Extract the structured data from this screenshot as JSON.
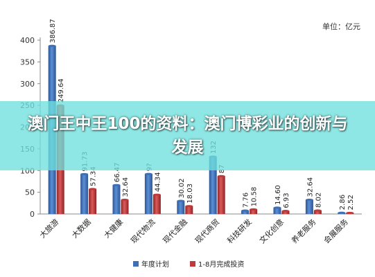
{
  "banner": {
    "title": "澳门王中王100的资料：澳门博彩业的创新与发展"
  },
  "chart_data": {
    "type": "bar",
    "unit_label": "单位：亿元",
    "categories": [
      "大旅游",
      "大数据",
      "大健康",
      "现代物流",
      "现代金融",
      "现代商贸",
      "科技研发",
      "文化创意",
      "养老服务",
      "会展服务"
    ],
    "series": [
      {
        "name": "年度计划",
        "color": "#3f6fb4",
        "values": [
          386.87,
          91.73,
          66.47,
          92.0,
          30.02,
          132.0,
          7.76,
          14.6,
          32.64,
          2.86
        ],
        "labels": [
          "386.87",
          "91.73",
          "66.47",
          "9?",
          "30.02",
          "132",
          "7.76",
          "14.60",
          "32.64",
          "2.86"
        ]
      },
      {
        "name": "1-8月完成投资",
        "color": "#c0393b",
        "values": [
          249.64,
          57.34,
          32.64,
          44.34,
          18.03,
          87.0,
          10.58,
          6.93,
          8.02,
          2.52
        ],
        "labels": [
          "249.64",
          "57.34",
          "32.64",
          "44.34",
          "18.03",
          "87",
          "10.58",
          "6.93",
          "8.02",
          "2.52"
        ]
      }
    ],
    "ylim": [
      0,
      400
    ],
    "yticks": [
      0,
      50,
      100,
      150,
      200,
      250,
      300,
      350,
      400
    ],
    "grid": false,
    "legend": "bottom"
  }
}
